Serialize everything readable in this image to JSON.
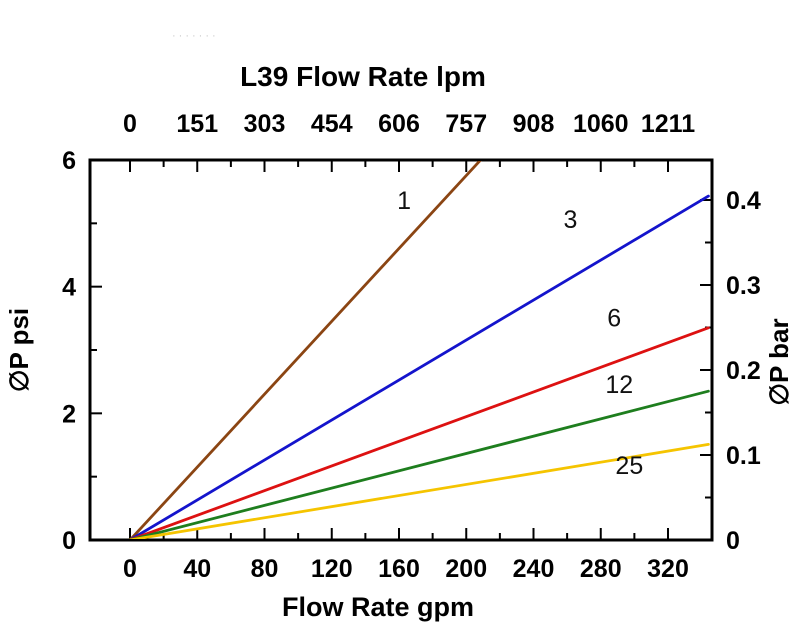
{
  "page": {
    "background": "#ffffff",
    "artifact_dots": "·······"
  },
  "chart_data": {
    "type": "line",
    "title": "L39 Flow Rate lpm",
    "axes": {
      "top": {
        "title": "L39 Flow Rate lpm",
        "tick_labels": [
          "0",
          "151",
          "303",
          "454",
          "606",
          "757",
          "908",
          "1060",
          "1211"
        ],
        "tick_values_gpm": [
          0,
          40,
          80,
          120,
          160,
          200,
          240,
          280,
          320
        ],
        "unit": "lpm"
      },
      "bottom": {
        "title": "Flow Rate gpm",
        "tick_labels": [
          "0",
          "40",
          "80",
          "120",
          "160",
          "200",
          "240",
          "280",
          "320"
        ],
        "tick_values": [
          0,
          40,
          80,
          120,
          160,
          200,
          240,
          280,
          320
        ],
        "minor_tick_values": [
          20,
          60,
          100,
          140,
          180,
          220,
          260,
          300
        ],
        "range": [
          0,
          320
        ],
        "unit": "gpm"
      },
      "left": {
        "title": "∅P psi",
        "tick_labels": [
          "0",
          "2",
          "4",
          "6"
        ],
        "tick_values": [
          0,
          2,
          4,
          6
        ],
        "minor_tick_values": [
          1,
          3,
          5
        ],
        "range": [
          0,
          6
        ],
        "unit": "psi"
      },
      "right": {
        "title": "∅P bar",
        "tick_labels": [
          "0",
          "0.1",
          "0.2",
          "0.3",
          "0.4"
        ],
        "tick_values": [
          0,
          0.1,
          0.2,
          0.3,
          0.4
        ],
        "minor_tick_values": [
          0.05,
          0.15,
          0.25,
          0.35
        ],
        "unit": "bar"
      }
    },
    "axis_color": "#000000",
    "series": [
      {
        "name": "1",
        "color": "#8B4513",
        "points": [
          [
            0,
            0
          ],
          [
            212,
            6.1
          ]
        ],
        "label_at": [
          163,
          5.35
        ]
      },
      {
        "name": "3",
        "color": "#1414CC",
        "points": [
          [
            0,
            0
          ],
          [
            344,
            5.43
          ]
        ],
        "label_at": [
          262,
          5.05
        ]
      },
      {
        "name": "6",
        "color": "#DD1111",
        "points": [
          [
            0,
            0
          ],
          [
            344,
            3.35
          ]
        ],
        "label_at": [
          288,
          3.5
        ]
      },
      {
        "name": "12",
        "color": "#1E7E1E",
        "points": [
          [
            0,
            0
          ],
          [
            344,
            2.35
          ]
        ],
        "label_at": [
          291,
          2.45
        ]
      },
      {
        "name": "25",
        "color": "#F5C400",
        "points": [
          [
            0,
            0
          ],
          [
            344,
            1.51
          ]
        ],
        "label_at": [
          297,
          1.17
        ]
      }
    ]
  }
}
